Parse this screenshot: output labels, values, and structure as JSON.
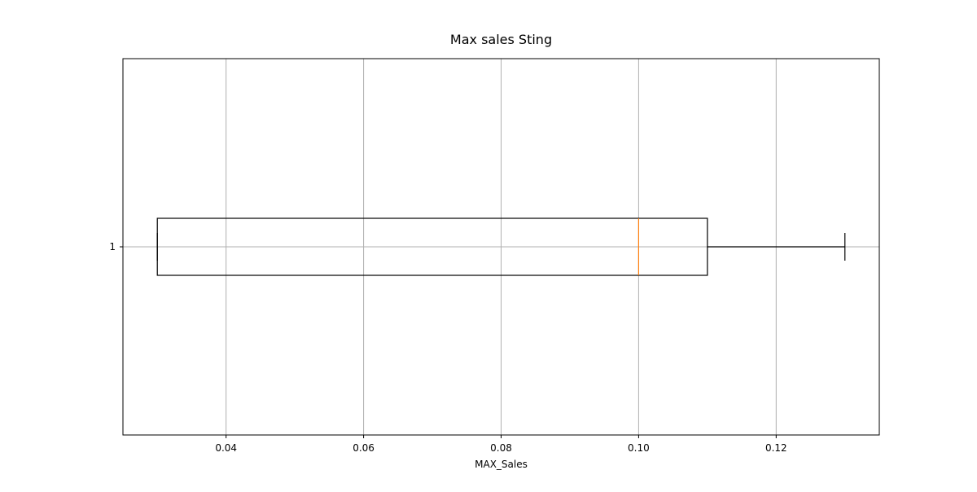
{
  "chart_data": {
    "type": "boxplot",
    "orientation": "horizontal",
    "title": "Max sales Sting",
    "xlabel": "MAX_Sales",
    "ylabel": "",
    "xlim": [
      0.025,
      0.135
    ],
    "x_ticks": [
      {
        "value": 0.04,
        "label": "0.04"
      },
      {
        "value": 0.06,
        "label": "0.06"
      },
      {
        "value": 0.08,
        "label": "0.08"
      },
      {
        "value": 0.1,
        "label": "0.10"
      },
      {
        "value": 0.12,
        "label": "0.12"
      }
    ],
    "categories": [
      "1"
    ],
    "grid": true,
    "series": [
      {
        "category": "1",
        "min": 0.03,
        "q1": 0.03,
        "median": 0.1,
        "q3": 0.11,
        "max": 0.13
      }
    ],
    "colors": {
      "box": "#000000",
      "median": "#ff7f0e",
      "grid": "#b0b0b0"
    }
  }
}
